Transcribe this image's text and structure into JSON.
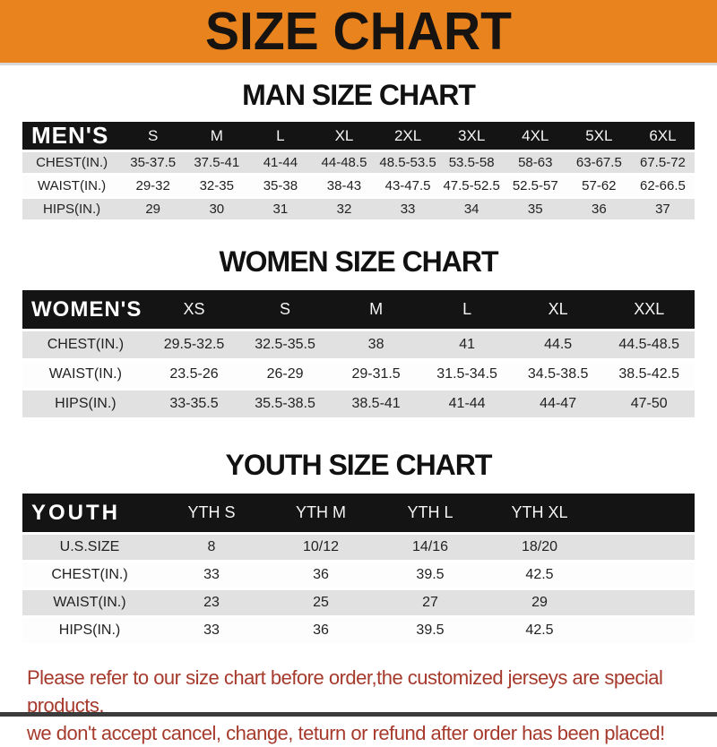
{
  "banner": {
    "title": "SIZE CHART"
  },
  "colors": {
    "banner_bg": "#E8831E",
    "table_header_bg": "#141414",
    "row_alt_bg": "#E1E1E1",
    "disclaimer_text": "#A63A2C"
  },
  "sections": [
    {
      "heading": "MAN SIZE CHART",
      "table": {
        "label": "MEN'S",
        "columns": [
          "S",
          "M",
          "L",
          "XL",
          "2XL",
          "3XL",
          "4XL",
          "5XL",
          "6XL"
        ],
        "rows": [
          {
            "label": "CHEST(IN.)",
            "values": [
              "35-37.5",
              "37.5-41",
              "41-44",
              "44-48.5",
              "48.5-53.5",
              "53.5-58",
              "58-63",
              "63-67.5",
              "67.5-72"
            ]
          },
          {
            "label": "WAIST(IN.)",
            "values": [
              "29-32",
              "32-35",
              "35-38",
              "38-43",
              "43-47.5",
              "47.5-52.5",
              "52.5-57",
              "57-62",
              "62-66.5"
            ]
          },
          {
            "label": "HIPS(IN.)",
            "values": [
              "29",
              "30",
              "31",
              "32",
              "33",
              "34",
              "35",
              "36",
              "37"
            ]
          }
        ]
      }
    },
    {
      "heading": "WOMEN SIZE CHART",
      "table": {
        "label": "WOMEN'S",
        "columns": [
          "XS",
          "S",
          "M",
          "L",
          "XL",
          "XXL"
        ],
        "rows": [
          {
            "label": "CHEST(IN.)",
            "values": [
              "29.5-32.5",
              "32.5-35.5",
              "38",
              "41",
              "44.5",
              "44.5-48.5"
            ]
          },
          {
            "label": "WAIST(IN.)",
            "values": [
              "23.5-26",
              "26-29",
              "29-31.5",
              "31.5-34.5",
              "34.5-38.5",
              "38.5-42.5"
            ]
          },
          {
            "label": "HIPS(IN.)",
            "values": [
              "33-35.5",
              "35.5-38.5",
              "38.5-41",
              "41-44",
              "44-47",
              "47-50"
            ]
          }
        ]
      }
    },
    {
      "heading": "YOUTH SIZE CHART",
      "table": {
        "label": "YOUTH",
        "columns": [
          "YTH S",
          "YTH M",
          "YTH L",
          "YTH XL"
        ],
        "rows": [
          {
            "label": "U.S.SIZE",
            "values": [
              "8",
              "10/12",
              "14/16",
              "18/20"
            ]
          },
          {
            "label": "CHEST(IN.)",
            "values": [
              "33",
              "36",
              "39.5",
              "42.5"
            ]
          },
          {
            "label": "WAIST(IN.)",
            "values": [
              "23",
              "25",
              "27",
              "29"
            ]
          },
          {
            "label": "HIPS(IN.)",
            "values": [
              "33",
              "36",
              "39.5",
              "42.5"
            ]
          }
        ]
      }
    }
  ],
  "disclaimer": {
    "line1": "Please refer to our size chart before order,the customized jerseys are special products,",
    "line2": "we don't accept cancel, change, teturn or refund after order has been placed!"
  }
}
